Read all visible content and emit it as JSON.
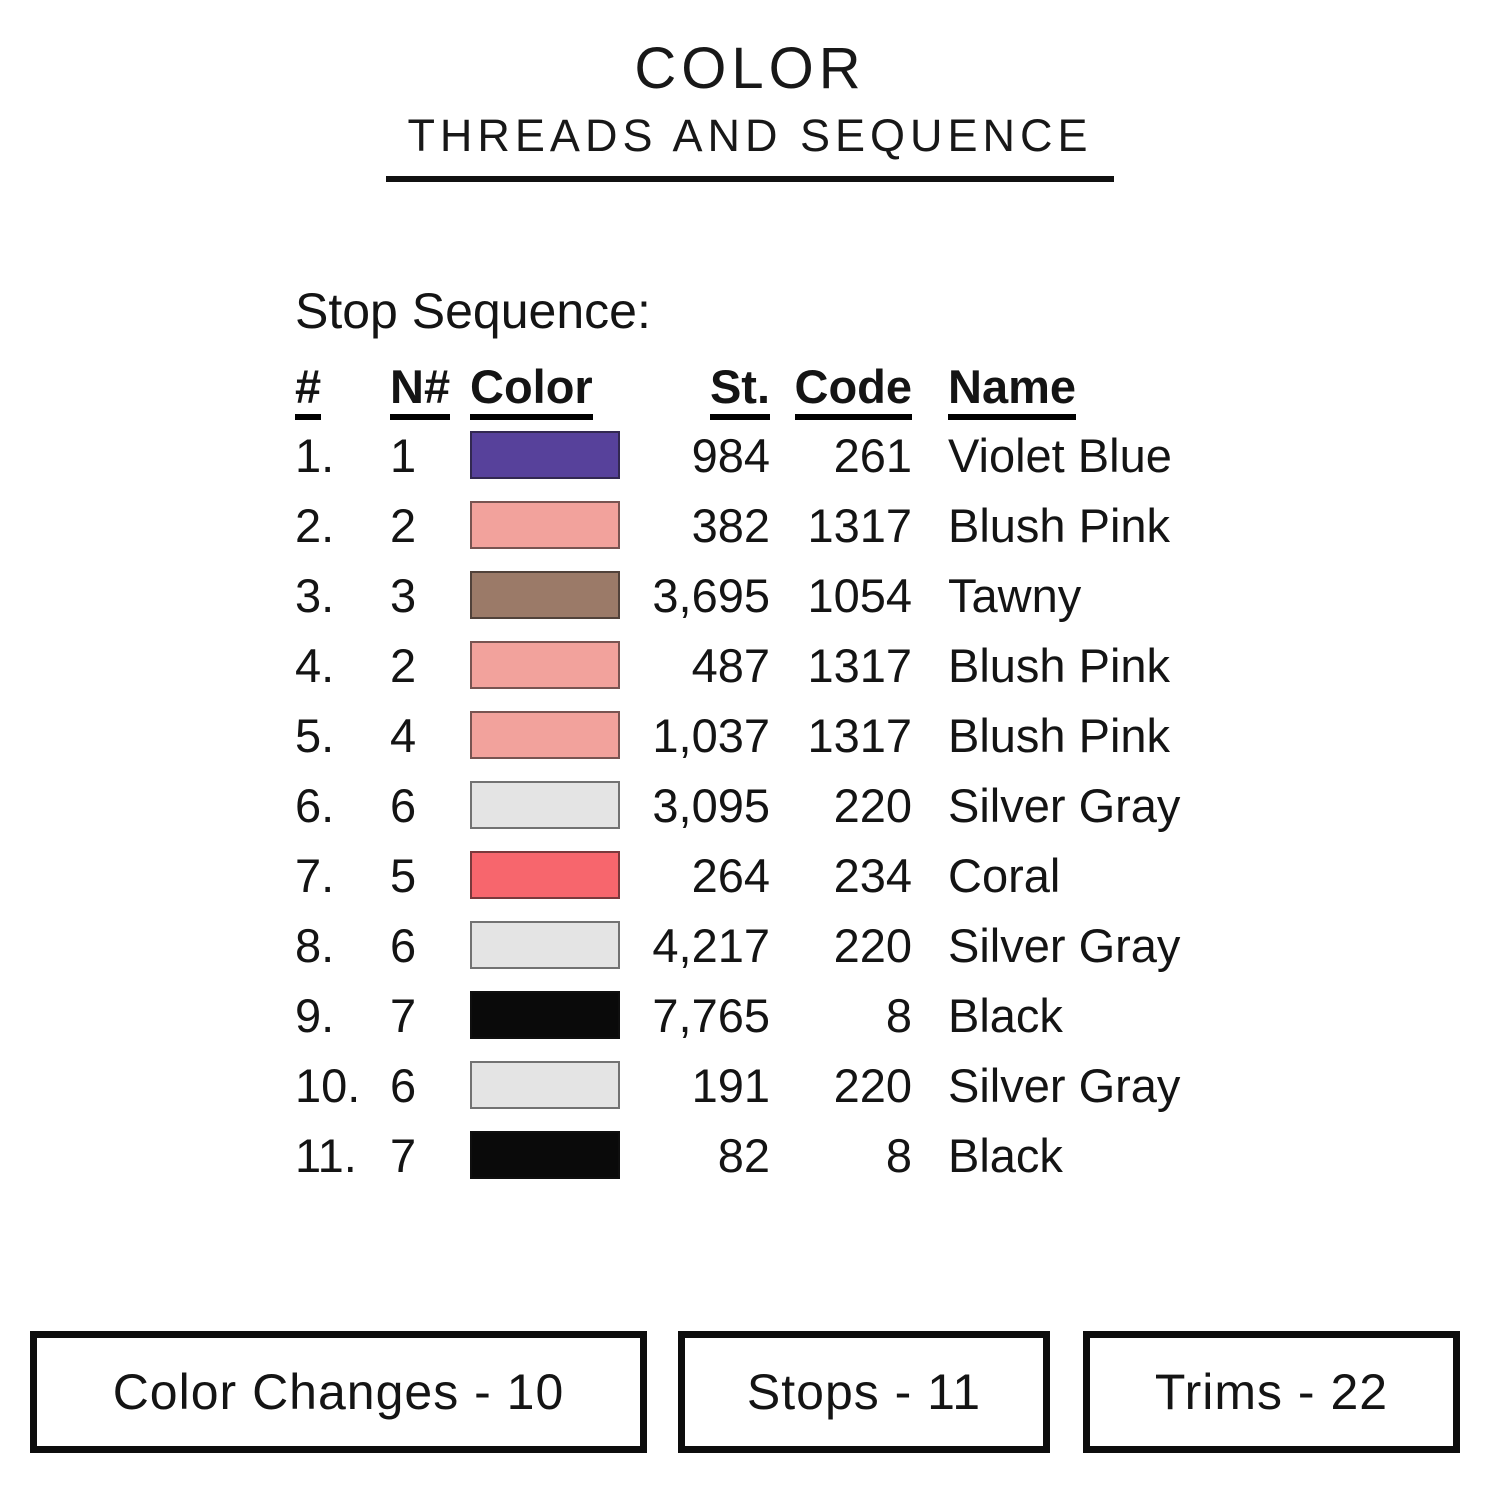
{
  "header": {
    "title": "COLOR",
    "subtitle": "THREADS AND SEQUENCE"
  },
  "table": {
    "section_label": "Stop Sequence:",
    "columns": {
      "num": "#",
      "needle": "N#",
      "color": "Color",
      "stitches": "St.",
      "code": "Code",
      "name": "Name"
    },
    "rows": [
      {
        "num": "1.",
        "needle": "1",
        "color": "#57419b",
        "st": "984",
        "code": "261",
        "name": "Violet Blue"
      },
      {
        "num": "2.",
        "needle": "2",
        "color": "#f2a29c",
        "st": "382",
        "code": "1317",
        "name": "Blush Pink"
      },
      {
        "num": "3.",
        "needle": "3",
        "color": "#9b7a68",
        "st": "3,695",
        "code": "1054",
        "name": "Tawny"
      },
      {
        "num": "4.",
        "needle": "2",
        "color": "#f2a29c",
        "st": "487",
        "code": "1317",
        "name": "Blush Pink"
      },
      {
        "num": "5.",
        "needle": "4",
        "color": "#f2a29c",
        "st": "1,037",
        "code": "1317",
        "name": "Blush Pink"
      },
      {
        "num": "6.",
        "needle": "6",
        "color": "#e4e4e4",
        "st": "3,095",
        "code": "220",
        "name": "Silver Gray"
      },
      {
        "num": "7.",
        "needle": "5",
        "color": "#f7666d",
        "st": "264",
        "code": "234",
        "name": "Coral"
      },
      {
        "num": "8.",
        "needle": "6",
        "color": "#e4e4e4",
        "st": "4,217",
        "code": "220",
        "name": "Silver Gray"
      },
      {
        "num": "9.",
        "needle": "7",
        "color": "#0a0a0a",
        "st": "7,765",
        "code": "8",
        "name": "Black"
      },
      {
        "num": "10.",
        "needle": "6",
        "color": "#e4e4e4",
        "st": "191",
        "code": "220",
        "name": "Silver Gray"
      },
      {
        "num": "11.",
        "needle": "7",
        "color": "#0a0a0a",
        "st": "82",
        "code": "8",
        "name": "Black"
      }
    ]
  },
  "summary": {
    "color_changes": "Color Changes - 10",
    "stops": "Stops - 11",
    "trims": "Trims - 22"
  }
}
